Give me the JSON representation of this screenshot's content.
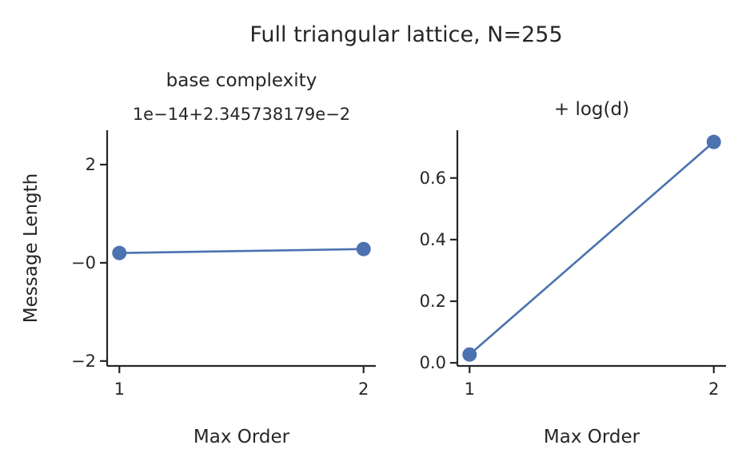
{
  "figure": {
    "title": "Full triangular lattice, N=255"
  },
  "chart_data": [
    {
      "type": "line",
      "title": "base complexity",
      "offset_label": "1e−14+2.345738179e−2",
      "xlabel": "Max Order",
      "ylabel": "Message Length",
      "x": [
        1,
        2
      ],
      "x_tick_values": [
        1,
        2
      ],
      "x_tick_labels": [
        "1",
        "2"
      ],
      "xlim": [
        0.95,
        2.05
      ],
      "y_tick_values": [
        -2,
        0,
        2
      ],
      "y_tick_labels": [
        "−2",
        "−0",
        "2"
      ],
      "ylim": [
        -2.1,
        2.7
      ],
      "series": [
        {
          "values": [
            0.2,
            0.28
          ],
          "color": "#4c72b0",
          "marker": "circle"
        }
      ],
      "grid": false,
      "spines": "left-bottom"
    },
    {
      "type": "line",
      "title": "+ log(d)",
      "xlabel": "Max Order",
      "ylabel": "",
      "x": [
        1,
        2
      ],
      "x_tick_values": [
        1,
        2
      ],
      "x_tick_labels": [
        "1",
        "2"
      ],
      "xlim": [
        0.95,
        2.05
      ],
      "y_tick_values": [
        0.0,
        0.2,
        0.4,
        0.6
      ],
      "y_tick_labels": [
        "0.0",
        "0.2",
        "0.4",
        "0.6"
      ],
      "ylim": [
        -0.01,
        0.755
      ],
      "series": [
        {
          "values": [
            0.027,
            0.717
          ],
          "color": "#4c72b0",
          "marker": "circle"
        }
      ],
      "grid": false,
      "spines": "left-bottom"
    }
  ]
}
